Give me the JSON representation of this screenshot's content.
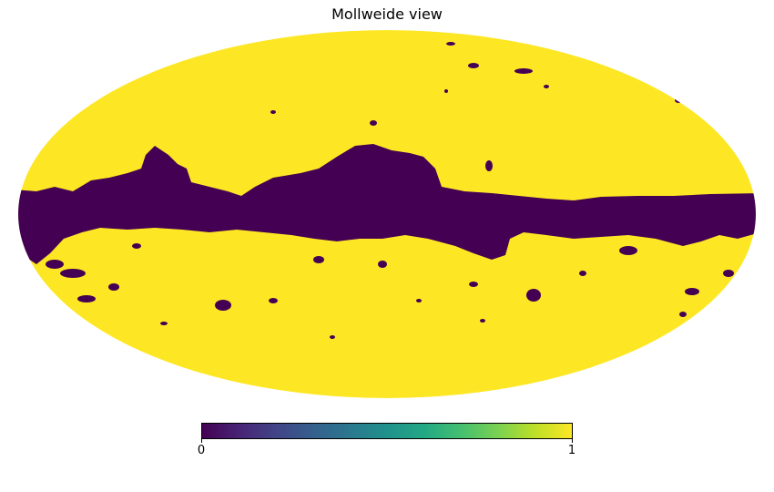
{
  "title": "Mollweide view",
  "map": {
    "projection": "mollweide",
    "masked_value": 0,
    "unmasked_value": 1
  },
  "colorbar": {
    "colormap": "viridis",
    "min_label": "0",
    "max_label": "1",
    "stops": [
      "#440154",
      "#482475",
      "#414487",
      "#355f8d",
      "#2a788e",
      "#21918c",
      "#22a884",
      "#44bf70",
      "#7ad151",
      "#bddf26",
      "#fde725"
    ]
  }
}
